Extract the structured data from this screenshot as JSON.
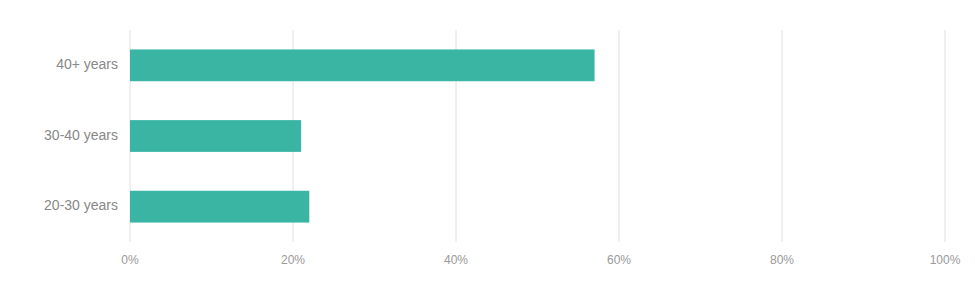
{
  "chart_data": {
    "type": "bar",
    "orientation": "horizontal",
    "categories": [
      "20-30 years",
      "30-40 years",
      "40+ years"
    ],
    "values": [
      22,
      21,
      57
    ],
    "color": "#3ab5a4",
    "xlim": [
      0,
      100
    ],
    "xticks": [
      {
        "value": 0,
        "label": "0%"
      },
      {
        "value": 20,
        "label": "20%"
      },
      {
        "value": 40,
        "label": "40%"
      },
      {
        "value": 60,
        "label": "60%"
      },
      {
        "value": 80,
        "label": "80%"
      },
      {
        "value": 100,
        "label": "100%"
      }
    ],
    "grid": true
  }
}
